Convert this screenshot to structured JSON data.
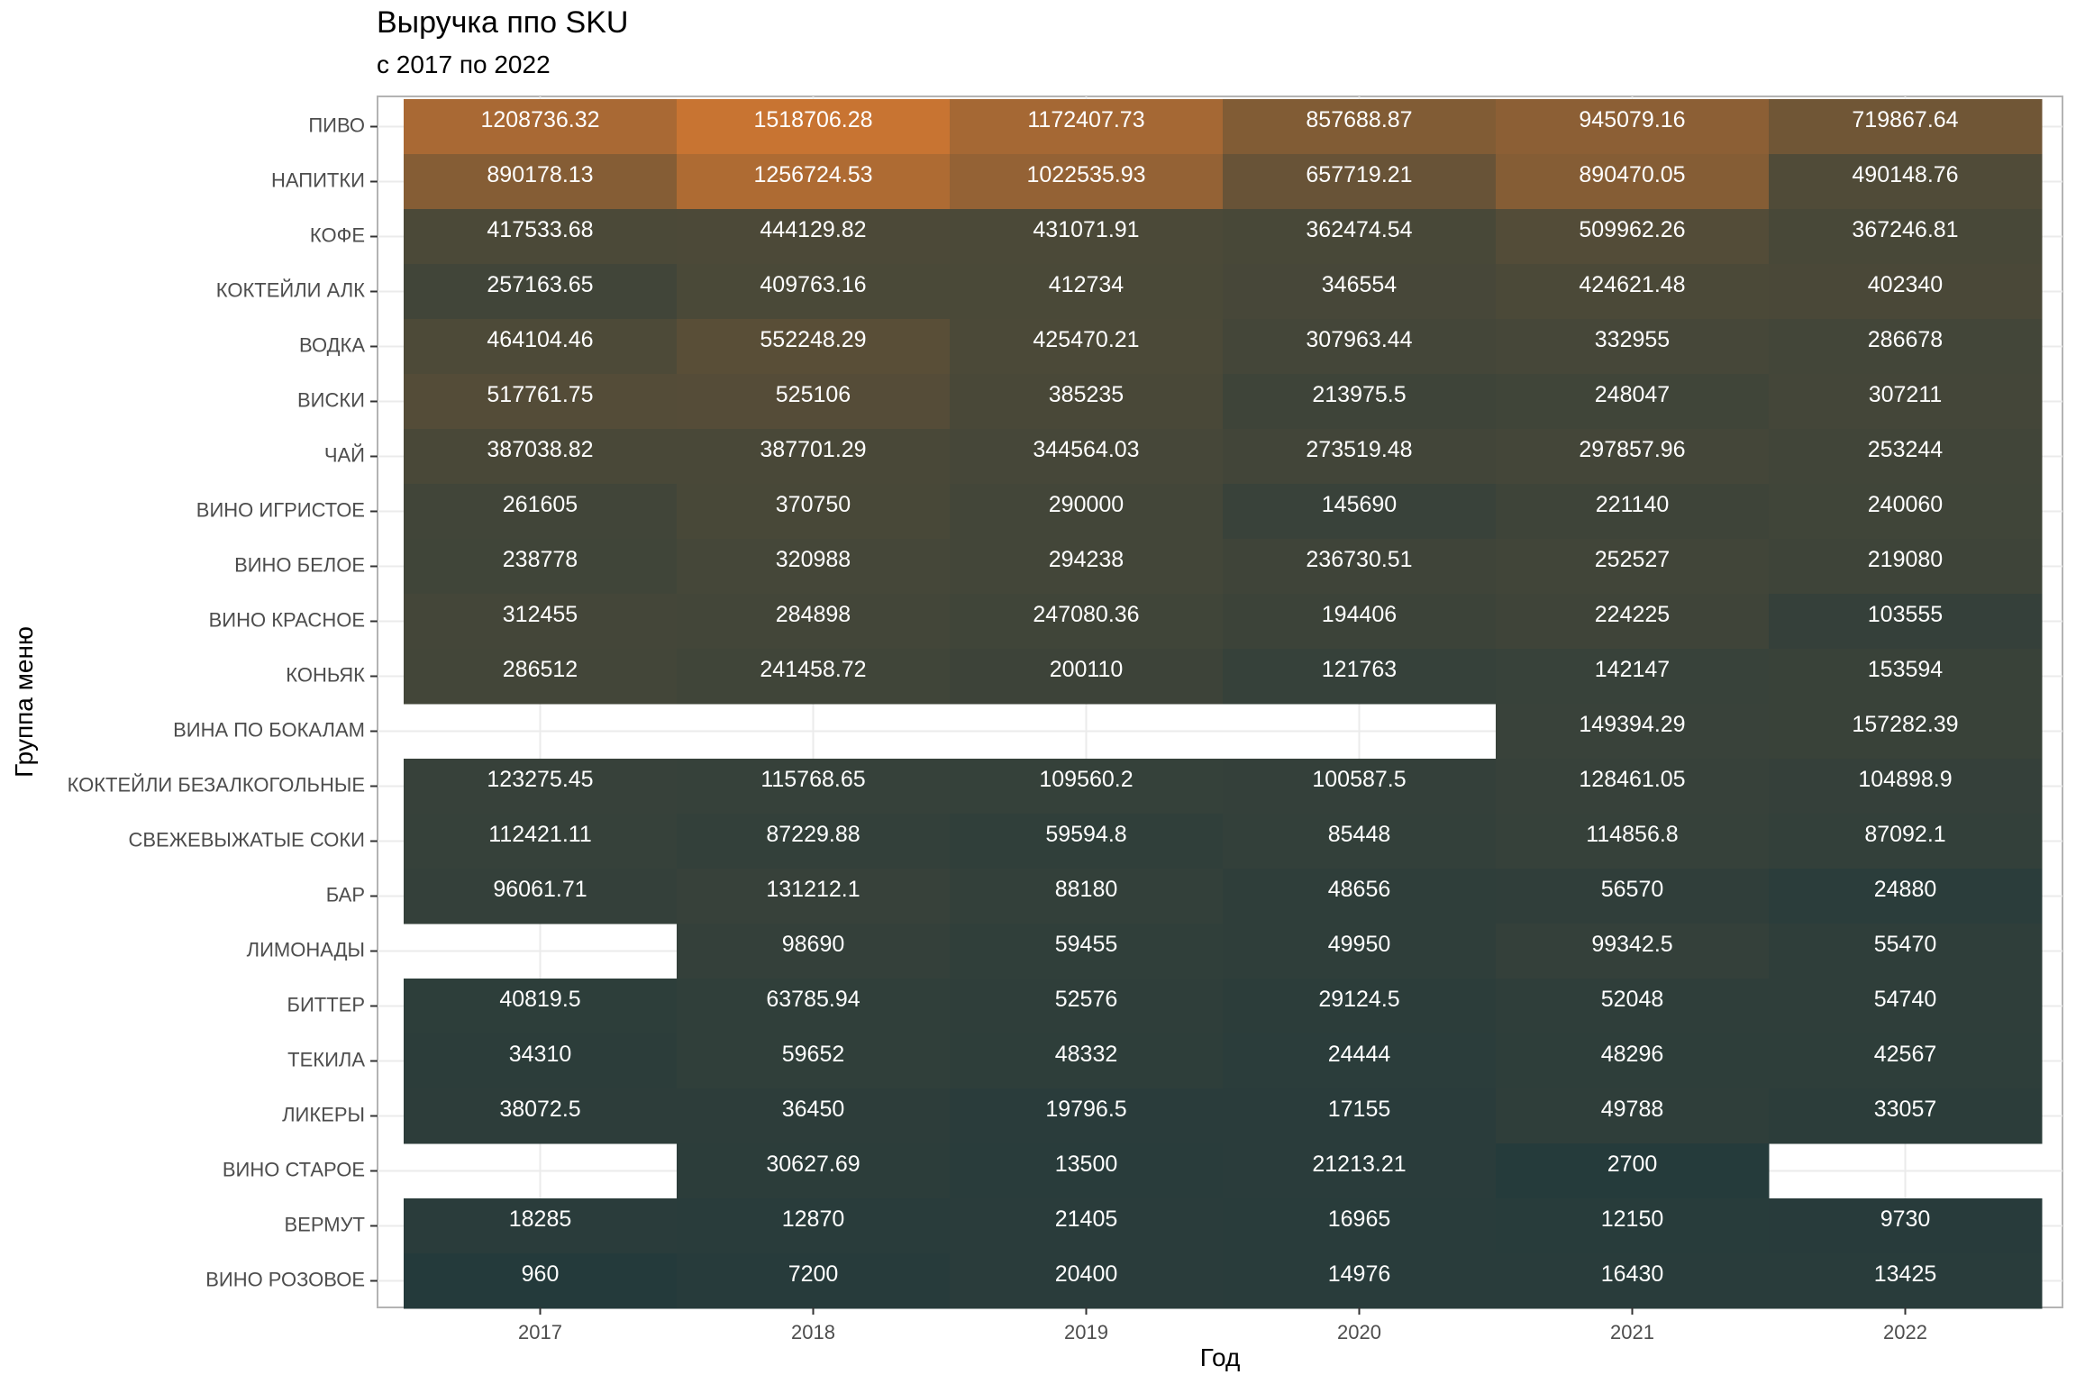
{
  "chart_data": {
    "type": "heatmap",
    "title": "Выручка ппо SKU",
    "subtitle": "с 2017 по 2022",
    "xlabel": "Год",
    "ylabel": "Группа меню",
    "x": [
      "2017",
      "2018",
      "2019",
      "2020",
      "2021",
      "2022"
    ],
    "y": [
      "ПИВО",
      "НАПИТКИ",
      "КОФЕ",
      "КОКТЕЙЛИ АЛК",
      "ВОДКА",
      "ВИСКИ",
      "ЧАЙ",
      "ВИНО ИГРИСТОЕ",
      "ВИНО БЕЛОЕ",
      "ВИНО КРАСНОЕ",
      "КОНЬЯК",
      "ВИНА ПО БОКАЛАМ",
      "КОКТЕЙЛИ БЕЗАЛКОГОЛЬНЫЕ",
      "СВЕЖЕВЫЖАТЫЕ СОКИ",
      "БАР",
      "ЛИМОНАДЫ",
      "БИТТЕР",
      "ТЕКИЛА",
      "ЛИКЕРЫ",
      "ВИНО СТАРОЕ",
      "ВЕРМУТ",
      "ВИНО РОЗОВОЕ"
    ],
    "values": [
      [
        "1208736.32",
        "1518706.28",
        "1172407.73",
        "857688.87",
        "945079.16",
        "719867.64"
      ],
      [
        "890178.13",
        "1256724.53",
        "1022535.93",
        "657719.21",
        "890470.05",
        "490148.76"
      ],
      [
        "417533.68",
        "444129.82",
        "431071.91",
        "362474.54",
        "509962.26",
        "367246.81"
      ],
      [
        "257163.65",
        "409763.16",
        "412734",
        "346554",
        "424621.48",
        "402340"
      ],
      [
        "464104.46",
        "552248.29",
        "425470.21",
        "307963.44",
        "332955",
        "286678"
      ],
      [
        "517761.75",
        "525106",
        "385235",
        "213975.5",
        "248047",
        "307211"
      ],
      [
        "387038.82",
        "387701.29",
        "344564.03",
        "273519.48",
        "297857.96",
        "253244"
      ],
      [
        "261605",
        "370750",
        "290000",
        "145690",
        "221140",
        "240060"
      ],
      [
        "238778",
        "320988",
        "294238",
        "236730.51",
        "252527",
        "219080"
      ],
      [
        "312455",
        "284898",
        "247080.36",
        "194406",
        "224225",
        "103555"
      ],
      [
        "286512",
        "241458.72",
        "200110",
        "121763",
        "142147",
        "153594"
      ],
      [
        null,
        null,
        null,
        null,
        "149394.29",
        "157282.39"
      ],
      [
        "123275.45",
        "115768.65",
        "109560.2",
        "100587.5",
        "128461.05",
        "104898.9"
      ],
      [
        "112421.11",
        "87229.88",
        "59594.8",
        "85448",
        "114856.8",
        "87092.1"
      ],
      [
        "96061.71",
        "131212.1",
        "88180",
        "48656",
        "56570",
        "24880"
      ],
      [
        null,
        "98690",
        "59455",
        "49950",
        "99342.5",
        "55470"
      ],
      [
        "40819.5",
        "63785.94",
        "52576",
        "29124.5",
        "52048",
        "54740"
      ],
      [
        "34310",
        "59652",
        "48332",
        "24444",
        "48296",
        "42567"
      ],
      [
        "38072.5",
        "36450",
        "19796.5",
        "17155",
        "49788",
        "33057"
      ],
      [
        null,
        "30627.69",
        "13500",
        "21213.21",
        "2700",
        null
      ],
      [
        "18285",
        "12870",
        "21405",
        "16965",
        "12150",
        "9730"
      ],
      [
        "960",
        "7200",
        "20400",
        "14976",
        "16430",
        "13425"
      ]
    ],
    "grid": true,
    "legend": "none",
    "colors": {
      "low": "#243a3b",
      "mid": "#4e4a38",
      "high": "#c87432",
      "panel_border": "#b3b3b3",
      "grid": "#ebebeb",
      "cell_text": "#ffffff"
    }
  }
}
